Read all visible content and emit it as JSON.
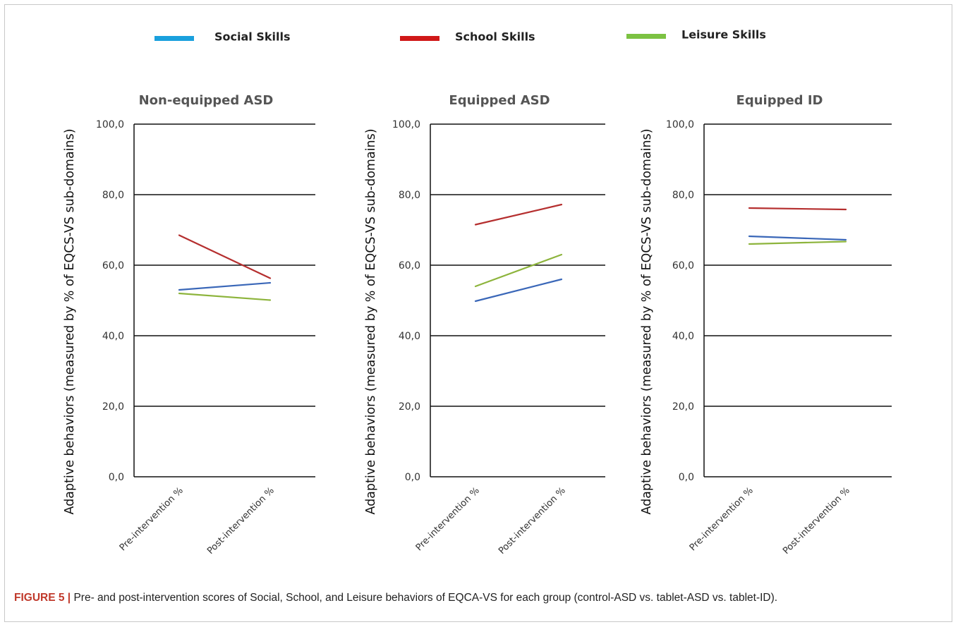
{
  "legend": [
    {
      "name": "Social Skills",
      "color": "#1aa0dd"
    },
    {
      "name": "School Skills",
      "color": "#d01818"
    },
    {
      "name": "Leisure Skills",
      "color": "#7cc242"
    }
  ],
  "ylabel": "Adaptive behaviors (measured by % of EQCS-VS sub-domains)",
  "caption": {
    "label": "FIGURE 5 |",
    "text": " Pre- and post-intervention scores of Social, School, and Leisure behaviors of EQCA-VS for each group (control-ASD vs. tablet-ASD vs. tablet-ID)."
  },
  "chart_data": [
    {
      "type": "line",
      "title": "Non-equipped ASD",
      "categories": [
        "Pre-intervention %",
        "Post-intervention %"
      ],
      "ylim": [
        0,
        100
      ],
      "yticks": [
        "0,0",
        "20,0",
        "40,0",
        "60,0",
        "80,0",
        "100,0"
      ],
      "series": [
        {
          "name": "Social Skills",
          "values": [
            53,
            55
          ],
          "color": "#3a67b8"
        },
        {
          "name": "School Skills",
          "values": [
            68.5,
            56.3
          ],
          "color": "#b52f2f"
        },
        {
          "name": "Leisure Skills",
          "values": [
            52,
            50.1
          ],
          "color": "#8db43c"
        }
      ]
    },
    {
      "type": "line",
      "title": "Equipped ASD",
      "categories": [
        "Pre-intervention %",
        "Post-intervention %"
      ],
      "ylim": [
        0,
        100
      ],
      "yticks": [
        "0,0",
        "20,0",
        "40,0",
        "60,0",
        "80,0",
        "100,0"
      ],
      "series": [
        {
          "name": "Social Skills",
          "values": [
            49.8,
            56
          ],
          "color": "#3a67b8"
        },
        {
          "name": "School Skills",
          "values": [
            71.5,
            77.2
          ],
          "color": "#b52f2f"
        },
        {
          "name": "Leisure Skills",
          "values": [
            54,
            63
          ],
          "color": "#8db43c"
        }
      ]
    },
    {
      "type": "line",
      "title": "Equipped ID",
      "categories": [
        "Pre-intervention %",
        "Post-intervention %"
      ],
      "ylim": [
        0,
        100
      ],
      "yticks": [
        "0,0",
        "20,0",
        "40,0",
        "60,0",
        "80,0",
        "100,0"
      ],
      "series": [
        {
          "name": "Social Skills",
          "values": [
            68.2,
            67.2
          ],
          "color": "#3a67b8"
        },
        {
          "name": "School Skills",
          "values": [
            76.2,
            75.8
          ],
          "color": "#b52f2f"
        },
        {
          "name": "Leisure Skills",
          "values": [
            66,
            66.7
          ],
          "color": "#8db43c"
        }
      ]
    }
  ]
}
